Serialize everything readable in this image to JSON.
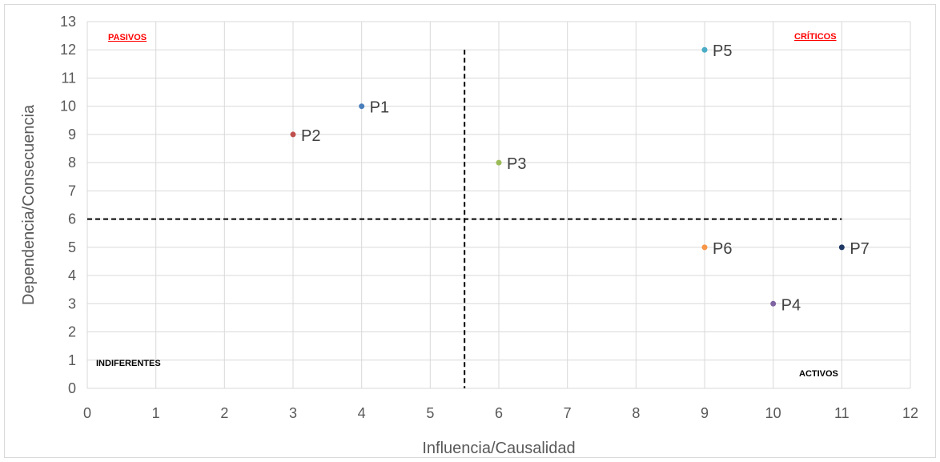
{
  "chart_data": {
    "type": "scatter",
    "xlabel": "Influencia/Causalidad",
    "ylabel": "Dependencia/Consecuencia",
    "xlim": [
      0,
      12
    ],
    "ylim": [
      0,
      13
    ],
    "x_ticks": [
      "0",
      "1",
      "2",
      "3",
      "4",
      "5",
      "6",
      "7",
      "8",
      "9",
      "10",
      "11",
      "12"
    ],
    "y_ticks": [
      "0",
      "1",
      "2",
      "3",
      "4",
      "5",
      "6",
      "7",
      "8",
      "9",
      "10",
      "11",
      "12",
      "13"
    ],
    "grid": true,
    "points": [
      {
        "label": "P1",
        "x": 4,
        "y": 10,
        "color": "#4a7ebb"
      },
      {
        "label": "P2",
        "x": 3,
        "y": 9,
        "color": "#c0504d"
      },
      {
        "label": "P3",
        "x": 6,
        "y": 8,
        "color": "#9bbb59"
      },
      {
        "label": "P4",
        "x": 10,
        "y": 3,
        "color": "#8064a2"
      },
      {
        "label": "P5",
        "x": 9,
        "y": 12,
        "color": "#4bacc6"
      },
      {
        "label": "P6",
        "x": 9,
        "y": 5,
        "color": "#f79646"
      },
      {
        "label": "P7",
        "x": 11,
        "y": 5,
        "color": "#1f3864"
      }
    ],
    "divider_x": 5.5,
    "divider_y": 6,
    "quadrants": {
      "top_left": {
        "text": "PASIVOS",
        "color": "#ff0000"
      },
      "top_right": {
        "text": "CRÍTICOS",
        "color": "#ff0000"
      },
      "bottom_left": {
        "text": "INDIFERENTES",
        "color": "#000000"
      },
      "bottom_right": {
        "text": "ACTIVOS",
        "color": "#000000"
      }
    }
  }
}
